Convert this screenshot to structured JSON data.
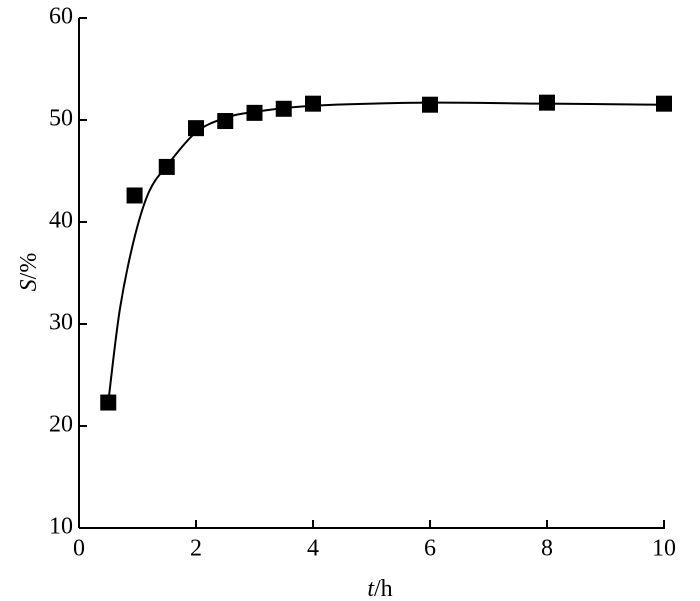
{
  "chart_data": {
    "type": "scatter",
    "x_label": "t/h",
    "y_label": "S/%",
    "xlim": [
      0,
      10
    ],
    "xticks": [
      0,
      2,
      4,
      6,
      8,
      10
    ],
    "ylim": [
      10,
      60
    ],
    "yticks": [
      10,
      20,
      30,
      40,
      50,
      60
    ],
    "series": [
      {
        "mode": "markers",
        "marker": "square",
        "color": "#000000",
        "x": [
          0.5,
          0.95,
          1.5,
          2,
          2.5,
          3,
          3.5,
          4,
          6,
          8,
          10
        ],
        "values": [
          22.3,
          42.6,
          45.4,
          49.2,
          49.9,
          50.7,
          51.1,
          51.6,
          51.5,
          51.7,
          51.6
        ]
      },
      {
        "mode": "lines",
        "color": "#000000",
        "x": [
          0.5,
          0.7,
          0.95,
          1.2,
          1.5,
          2,
          2.5,
          3,
          4,
          6,
          8,
          10
        ],
        "values": [
          22.3,
          31.5,
          38.5,
          43,
          45.5,
          48.8,
          50.2,
          50.8,
          51.4,
          51.7,
          51.6,
          51.5
        ]
      }
    ]
  }
}
